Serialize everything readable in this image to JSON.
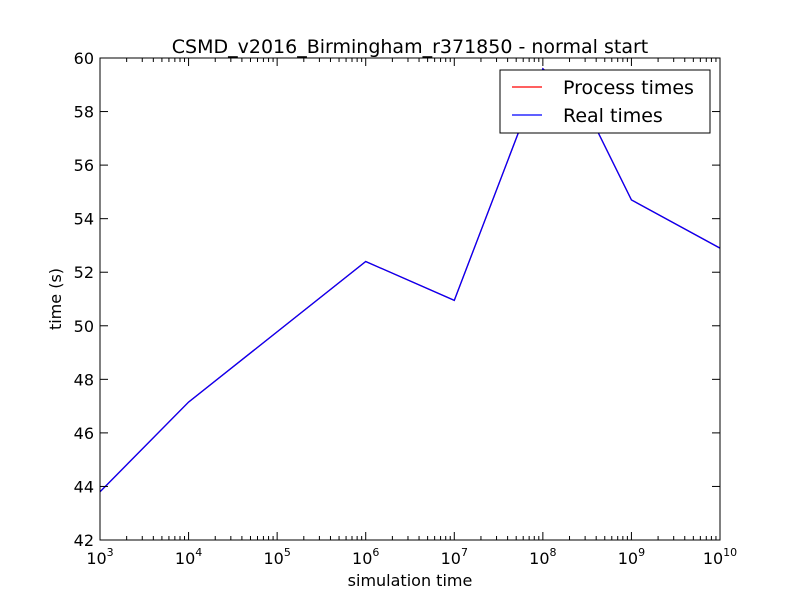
{
  "chart_data": {
    "type": "line",
    "title": "CSMD_v2016_Birmingham_r371850 - normal start",
    "xlabel": "simulation time",
    "ylabel": "time (s)",
    "xscale": "log",
    "xlim": [
      1000,
      10000000000
    ],
    "ylim": [
      42,
      60
    ],
    "xticks": [
      {
        "value": 1000,
        "base": "10",
        "exp": "3"
      },
      {
        "value": 10000,
        "base": "10",
        "exp": "4"
      },
      {
        "value": 100000,
        "base": "10",
        "exp": "5"
      },
      {
        "value": 1000000,
        "base": "10",
        "exp": "6"
      },
      {
        "value": 10000000,
        "base": "10",
        "exp": "7"
      },
      {
        "value": 100000000,
        "base": "10",
        "exp": "8"
      },
      {
        "value": 1000000000,
        "base": "10",
        "exp": "9"
      },
      {
        "value": 10000000000,
        "base": "10",
        "exp": "10"
      }
    ],
    "yticks": [
      42,
      44,
      46,
      48,
      50,
      52,
      54,
      56,
      58,
      60
    ],
    "grid": false,
    "legend_position": "top-right",
    "series": [
      {
        "name": "Process times",
        "color": "#ff0000",
        "points": [
          {
            "x": 1000,
            "y": 43.8
          },
          {
            "x": 10000,
            "y": 47.15
          },
          {
            "x": 1000000,
            "y": 52.4
          },
          {
            "x": 10000000,
            "y": 50.95
          },
          {
            "x": 100000000,
            "y": 59.6
          },
          {
            "x": 300000000,
            "y": 58.2
          },
          {
            "x": 1000000000,
            "y": 54.7
          },
          {
            "x": 10000000000,
            "y": 52.9
          }
        ]
      },
      {
        "name": "Real times",
        "color": "#0000ff",
        "points": [
          {
            "x": 1000,
            "y": 43.8
          },
          {
            "x": 10000,
            "y": 47.15
          },
          {
            "x": 1000000,
            "y": 52.4
          },
          {
            "x": 10000000,
            "y": 50.95
          },
          {
            "x": 100000000,
            "y": 59.6
          },
          {
            "x": 300000000,
            "y": 58.2
          },
          {
            "x": 1000000000,
            "y": 54.7
          },
          {
            "x": 10000000000,
            "y": 52.9
          }
        ]
      }
    ]
  }
}
